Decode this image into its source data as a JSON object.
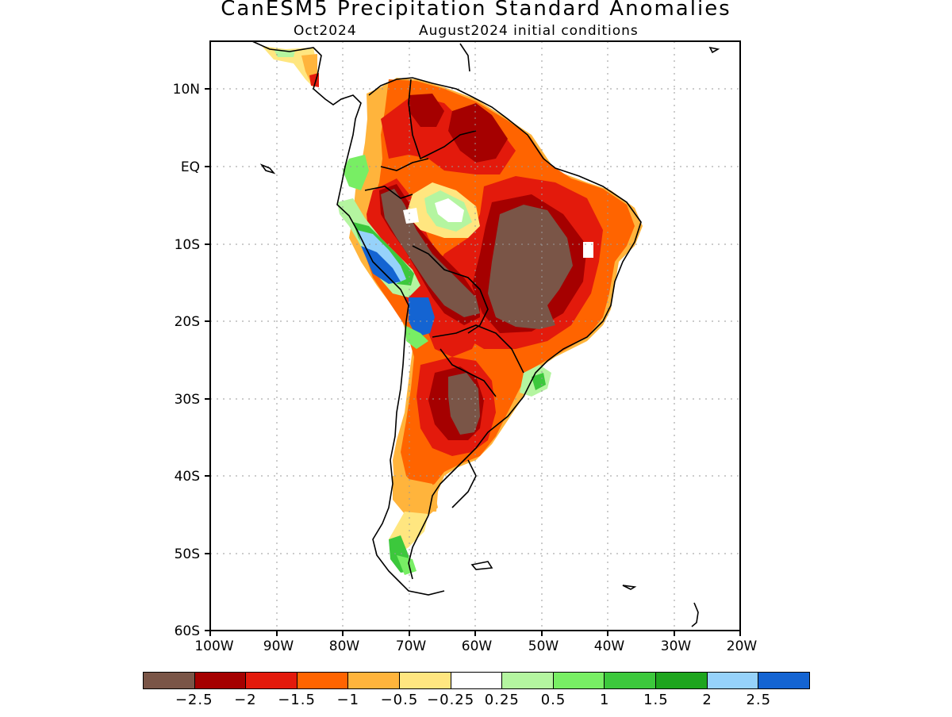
{
  "header": {
    "title": "CanESM5 Precipitation Standard Anomalies",
    "forecast_month": "Oct2024",
    "init_conditions": "August2024 initial conditions"
  },
  "axes": {
    "lat_labels": [
      "10N",
      "EQ",
      "10S",
      "20S",
      "30S",
      "40S",
      "50S",
      "60S"
    ],
    "lon_labels": [
      "100W",
      "90W",
      "80W",
      "70W",
      "60W",
      "50W",
      "40W",
      "30W",
      "20W"
    ]
  },
  "legend": {
    "colors": [
      "#7a5547",
      "#a50000",
      "#e31a0c",
      "#ff6400",
      "#ffb43c",
      "#ffe680",
      "#ffffff",
      "#b4f5a0",
      "#78ee64",
      "#3cc83c",
      "#1ea51e",
      "#96d2fa",
      "#1464d2"
    ],
    "labels": [
      "−2.5",
      "−2",
      "−1.5",
      "−1",
      "−0.5",
      "−0.25",
      "0.25",
      "0.5",
      "1",
      "1.5",
      "2",
      "2.5"
    ]
  }
}
